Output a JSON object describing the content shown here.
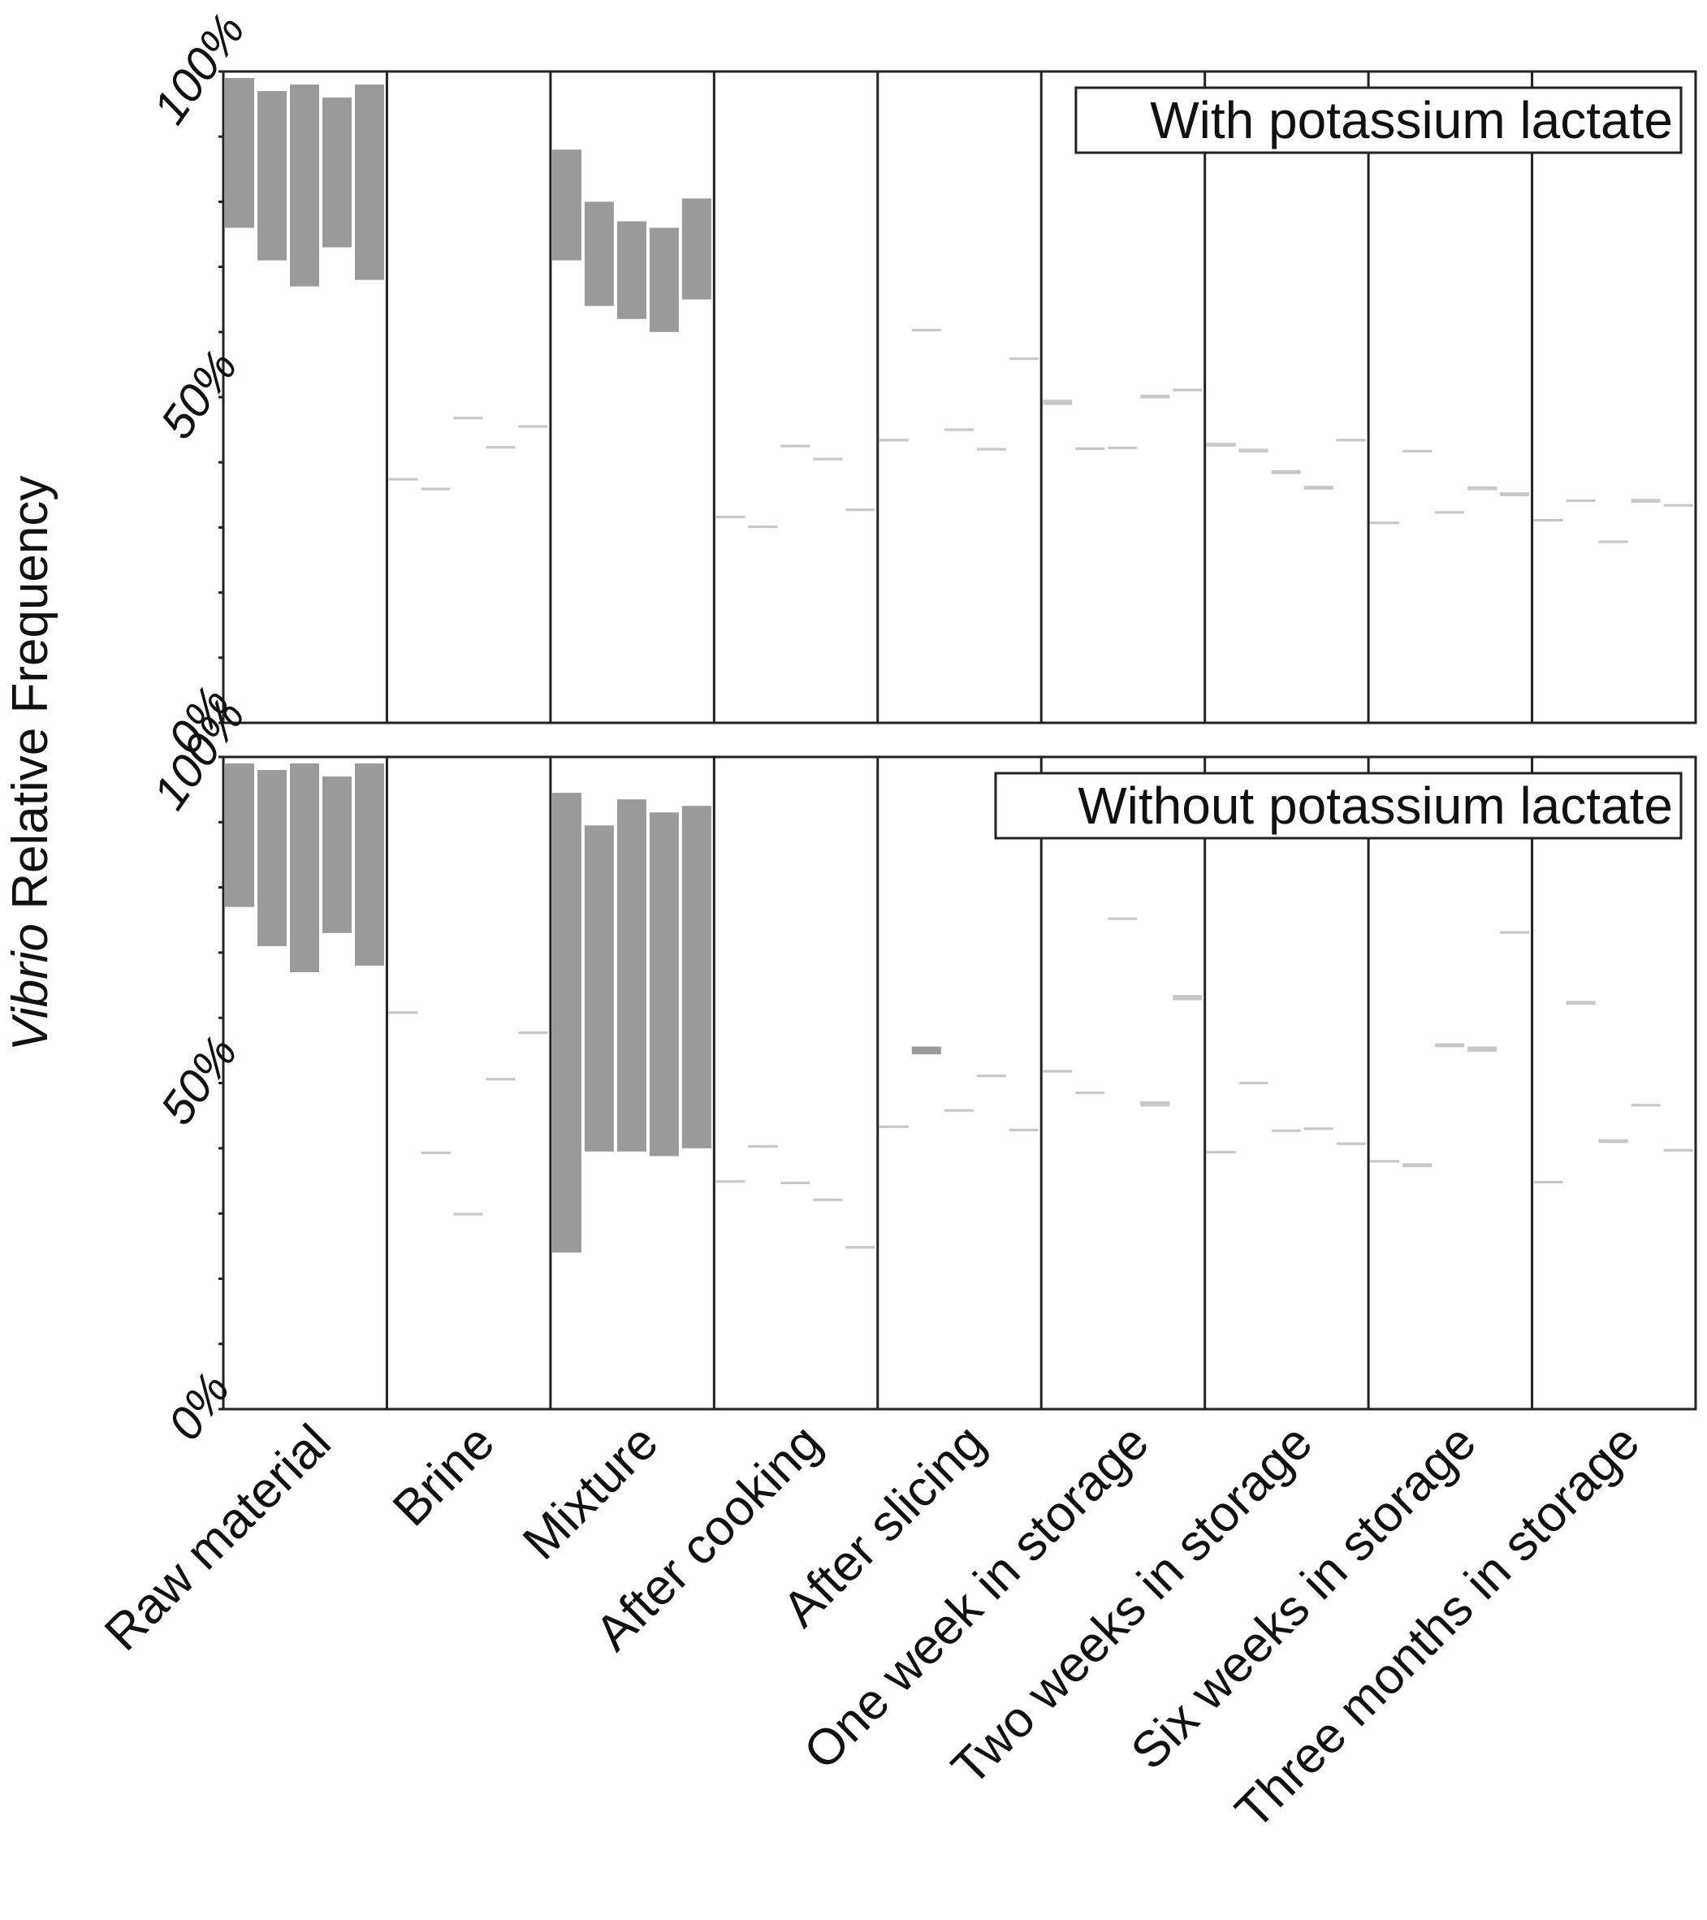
{
  "chart_data": {
    "type": "bar",
    "subtype": "floating-range (min–max per replicate)",
    "ylabel_italic": "Vibrio",
    "ylabel_rest": " Relative Frequency",
    "categories": [
      "Raw material",
      "Brine",
      "Mixture",
      "After cooking",
      "After slicing",
      "One week in storage",
      "Two weeks in storage",
      "Six weeks in storage",
      "Three months in storage"
    ],
    "ytick_labels": [
      "0%",
      "50%",
      "100%"
    ],
    "ylim": [
      0,
      100
    ],
    "bar_color": "#9a9a9a",
    "panels": [
      {
        "label": "With potassium lactate",
        "groups": [
          {
            "category": "Raw material",
            "bars": [
              [
                76,
                99
              ],
              [
                71,
                97
              ],
              [
                67,
                98
              ],
              [
                73,
                96
              ],
              [
                68,
                98
              ]
            ]
          },
          {
            "category": "Brine",
            "bars": [
              [
                37.2,
                37.6
              ],
              [
                35.7,
                36.1
              ],
              [
                46.6,
                47.0
              ],
              [
                42.1,
                42.5
              ],
              [
                45.3,
                45.7
              ]
            ]
          },
          {
            "category": "Mixture",
            "bars": [
              [
                71,
                88
              ],
              [
                64,
                80
              ],
              [
                62,
                77
              ],
              [
                60,
                76
              ],
              [
                65,
                80.5
              ]
            ]
          },
          {
            "category": "After cooking",
            "bars": [
              [
                31.4,
                31.8
              ],
              [
                29.9,
                30.3
              ],
              [
                42.3,
                42.7
              ],
              [
                40.3,
                40.7
              ],
              [
                32.5,
                32.9
              ]
            ]
          },
          {
            "category": "After slicing",
            "bars": [
              [
                43.2,
                43.6
              ],
              [
                60.1,
                60.5
              ],
              [
                44.8,
                45.2
              ],
              [
                41.8,
                42.2
              ],
              [
                55.7,
                56.1
              ]
            ]
          },
          {
            "category": "One week in storage",
            "bars": [
              [
                48.8,
                49.6
              ],
              [
                41.9,
                42.3
              ],
              [
                42.0,
                42.4
              ],
              [
                49.8,
                50.4
              ],
              [
                50.9,
                51.3
              ]
            ]
          },
          {
            "category": "Two weeks in storage",
            "bars": [
              [
                42.4,
                43.0
              ],
              [
                41.5,
                42.1
              ],
              [
                38.2,
                38.8
              ],
              [
                35.8,
                36.4
              ],
              [
                43.2,
                43.6
              ]
            ]
          },
          {
            "category": "Six weeks in storage",
            "bars": [
              [
                30.5,
                30.9
              ],
              [
                41.5,
                41.9
              ],
              [
                32.1,
                32.5
              ],
              [
                35.7,
                36.3
              ],
              [
                34.8,
                35.4
              ]
            ]
          },
          {
            "category": "Three months in storage",
            "bars": [
              [
                30.9,
                31.3
              ],
              [
                33.9,
                34.3
              ],
              [
                27.6,
                28.0
              ],
              [
                33.8,
                34.4
              ],
              [
                33.2,
                33.6
              ]
            ]
          }
        ]
      },
      {
        "label": "Without potassium lactate",
        "groups": [
          {
            "category": "Raw material",
            "bars": [
              [
                77,
                99
              ],
              [
                71,
                98
              ],
              [
                67,
                99
              ],
              [
                73,
                97
              ],
              [
                68,
                99
              ]
            ]
          },
          {
            "category": "Brine",
            "bars": [
              [
                60.6,
                61.0
              ],
              [
                39.1,
                39.5
              ],
              [
                29.7,
                30.1
              ],
              [
                50.4,
                50.8
              ],
              [
                57.5,
                57.9
              ]
            ]
          },
          {
            "category": "Mixture",
            "bars": [
              [
                24,
                94.5
              ],
              [
                39.5,
                89.5
              ],
              [
                39.5,
                93.5
              ],
              [
                38.8,
                91.5
              ],
              [
                40,
                92.5
              ]
            ]
          },
          {
            "category": "After cooking",
            "bars": [
              [
                34.7,
                35.1
              ],
              [
                40.1,
                40.5
              ],
              [
                34.5,
                34.9
              ],
              [
                31.9,
                32.3
              ],
              [
                24.6,
                25.0
              ]
            ]
          },
          {
            "category": "After slicing",
            "bars": [
              [
                43.1,
                43.5
              ],
              [
                54.4,
                55.6
              ],
              [
                45.6,
                46.0
              ],
              [
                50.9,
                51.3
              ],
              [
                42.6,
                43.0
              ]
            ]
          },
          {
            "category": "One week in storage",
            "bars": [
              [
                51.6,
                52.0
              ],
              [
                48.3,
                48.7
              ],
              [
                75.0,
                75.4
              ],
              [
                46.4,
                47.2
              ],
              [
                62.7,
                63.5
              ]
            ]
          },
          {
            "category": "Two weeks in storage",
            "bars": [
              [
                39.2,
                39.6
              ],
              [
                49.8,
                50.2
              ],
              [
                42.5,
                42.9
              ],
              [
                42.8,
                43.2
              ],
              [
                40.5,
                40.9
              ]
            ]
          },
          {
            "category": "Six weeks in storage",
            "bars": [
              [
                37.8,
                38.2
              ],
              [
                37.1,
                37.7
              ],
              [
                55.5,
                56.1
              ],
              [
                54.8,
                55.6
              ],
              [
                72.9,
                73.3
              ]
            ]
          },
          {
            "category": "Three months in storage",
            "bars": [
              [
                34.6,
                35.0
              ],
              [
                62.0,
                62.6
              ],
              [
                40.8,
                41.4
              ],
              [
                46.4,
                46.8
              ],
              [
                39.5,
                39.9
              ]
            ]
          }
        ]
      }
    ]
  }
}
